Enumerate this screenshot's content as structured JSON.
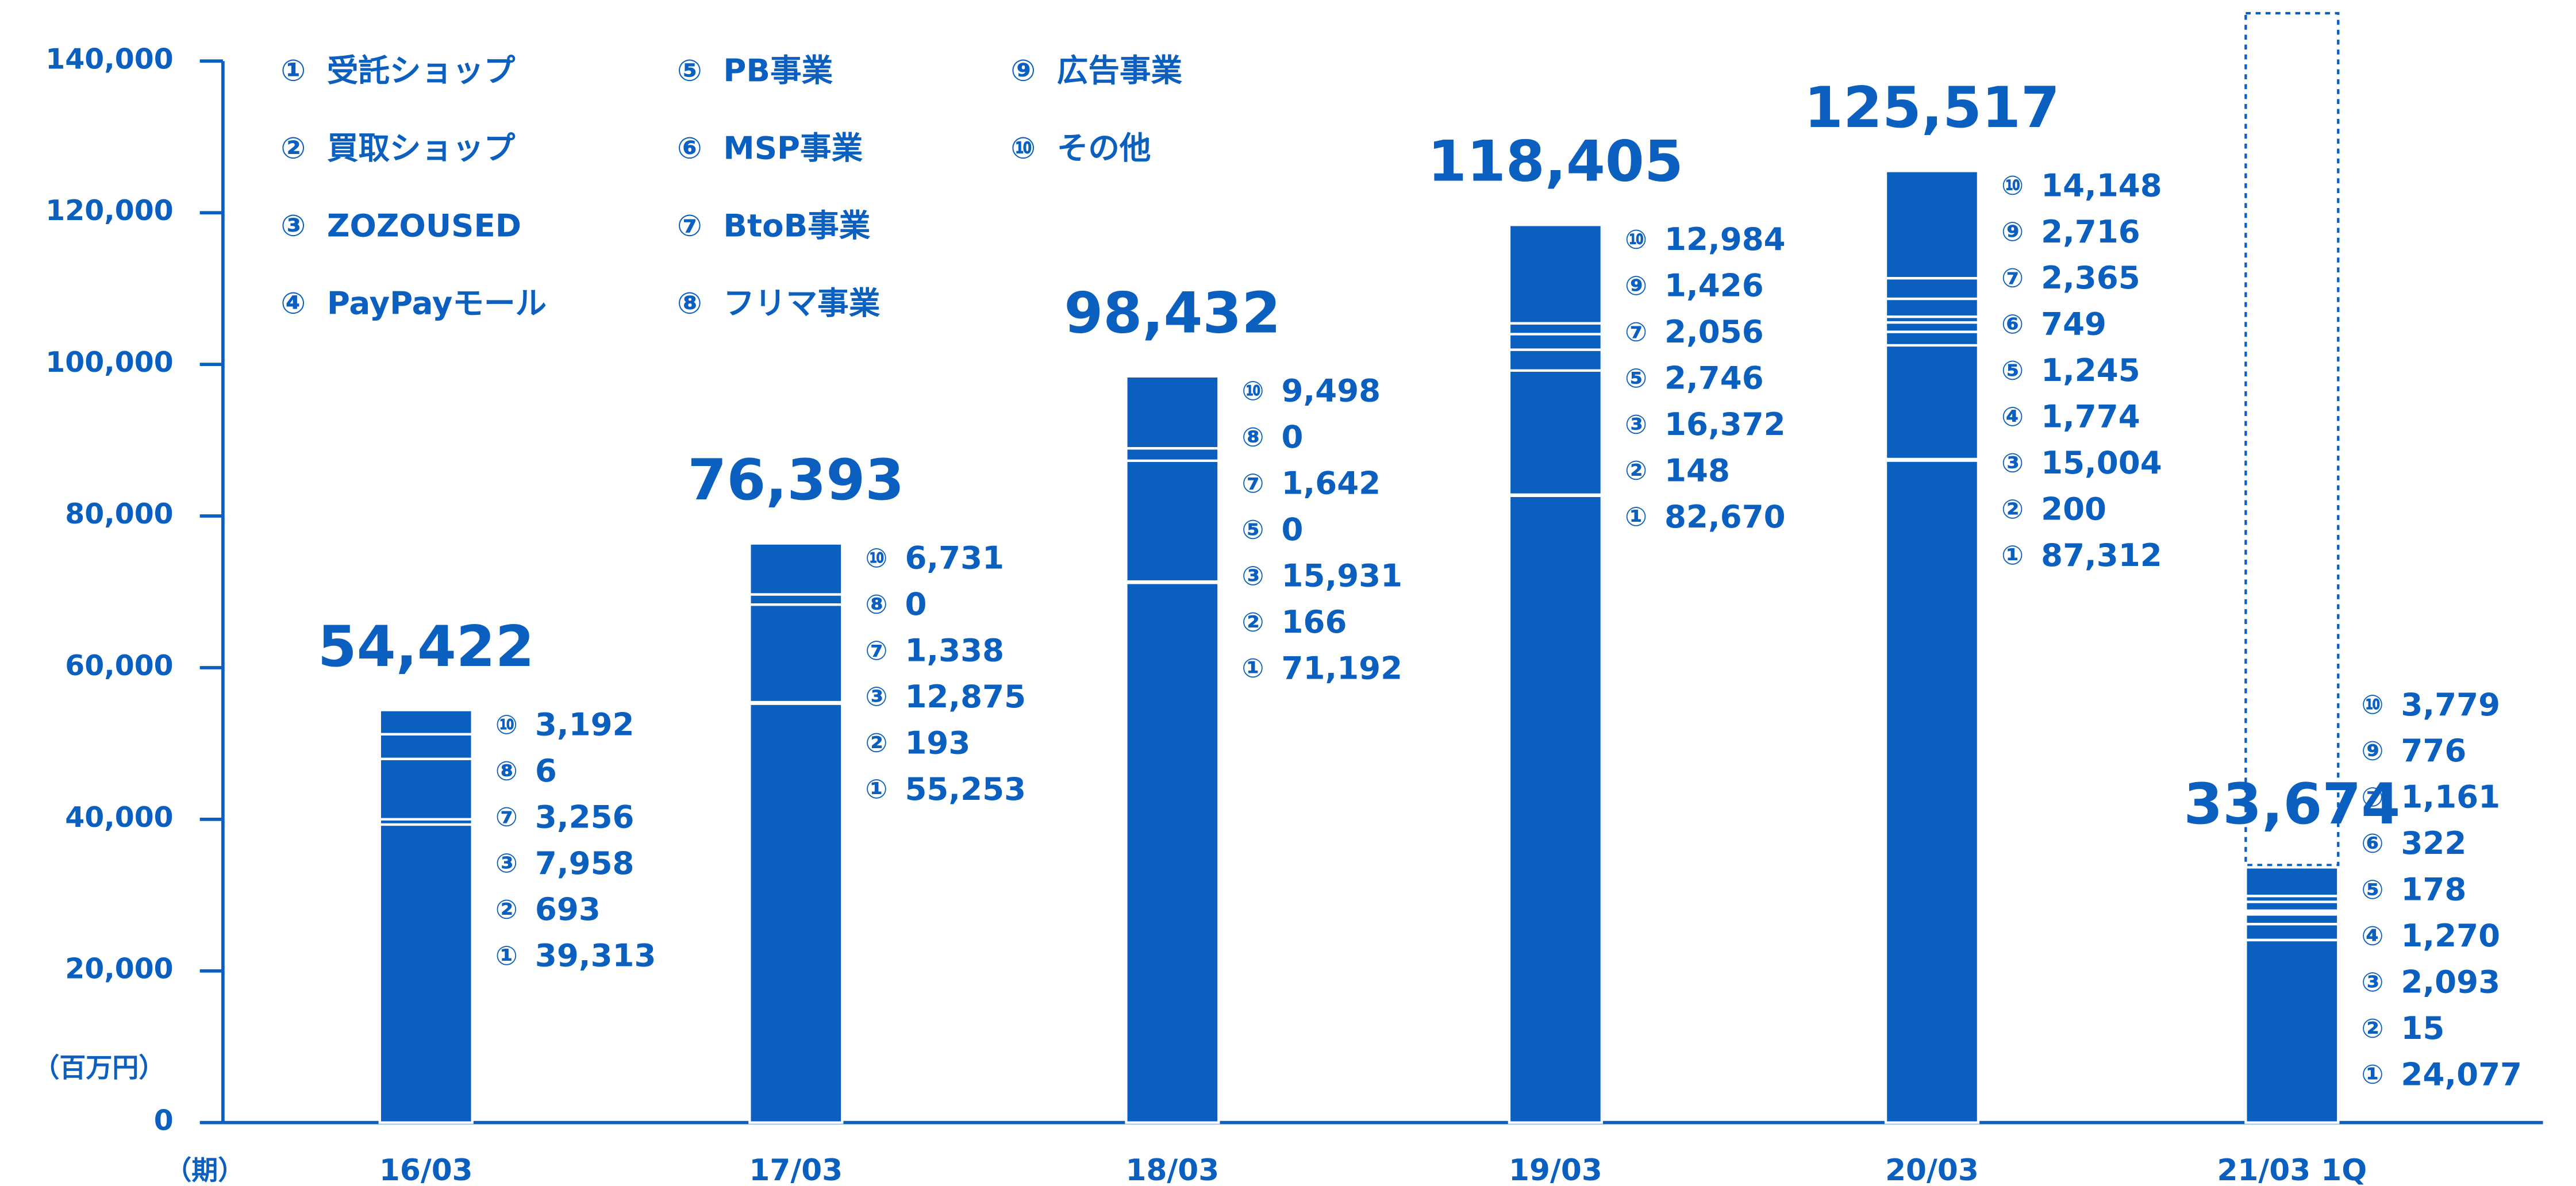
{
  "chart_data": {
    "type": "stacked-bar",
    "categories": [
      "16/03",
      "17/03",
      "18/03",
      "19/03",
      "20/03",
      "21/03 1Q"
    ],
    "y_label": "（百万円）",
    "x_label": "（期）",
    "ylim": [
      0,
      140000
    ],
    "yticks": [
      {
        "value": 0,
        "label": "0"
      },
      {
        "value": 20000,
        "label": "20,000"
      },
      {
        "value": 40000,
        "label": "40,000"
      },
      {
        "value": 60000,
        "label": "60,000"
      },
      {
        "value": 80000,
        "label": "80,000"
      },
      {
        "value": 100000,
        "label": "100,000"
      },
      {
        "value": 120000,
        "label": "120,000"
      },
      {
        "value": 140000,
        "label": "140,000"
      }
    ],
    "color": "#0b5fbf",
    "totals": [
      54422,
      76393,
      98432,
      118405,
      125517,
      33674
    ],
    "total_labels": [
      "54,422",
      "76,393",
      "98,432",
      "118,405",
      "125,517",
      "33,674"
    ],
    "series": [
      {
        "marker": "①",
        "name": "受託ショップ",
        "values": [
          39313,
          55253,
          71192,
          82670,
          87312,
          24077
        ],
        "value_labels": [
          "39,313",
          "55,253",
          "71,192",
          "82,670",
          "87,312",
          "24,077"
        ]
      },
      {
        "marker": "②",
        "name": "買取ショップ",
        "values": [
          693,
          193,
          166,
          148,
          200,
          15
        ],
        "value_labels": [
          "693",
          "193",
          "166",
          "148",
          "200",
          "15"
        ]
      },
      {
        "marker": "③",
        "name": "ZOZOUSED",
        "values": [
          7958,
          12875,
          15931,
          16372,
          15004,
          2093
        ],
        "value_labels": [
          "7,958",
          "12,875",
          "15,931",
          "16,372",
          "15,004",
          "2,093"
        ]
      },
      {
        "marker": "④",
        "name": "PayPayモール",
        "values": [
          null,
          null,
          null,
          null,
          1774,
          1270
        ],
        "value_labels": [
          null,
          null,
          null,
          null,
          "1,774",
          "1,270"
        ]
      },
      {
        "marker": "⑤",
        "name": "PB事業",
        "values": [
          null,
          null,
          0,
          2746,
          1245,
          178
        ],
        "value_labels": [
          null,
          null,
          "0",
          "2,746",
          "1,245",
          "178"
        ]
      },
      {
        "marker": "⑥",
        "name": "MSP事業",
        "values": [
          null,
          null,
          null,
          null,
          749,
          322
        ],
        "value_labels": [
          null,
          null,
          null,
          null,
          "749",
          "322"
        ]
      },
      {
        "marker": "⑦",
        "name": "BtoB事業",
        "values": [
          3256,
          1338,
          1642,
          2056,
          2365,
          1161
        ],
        "value_labels": [
          "3,256",
          "1,338",
          "1,642",
          "2,056",
          "2,365",
          "1,161"
        ]
      },
      {
        "marker": "⑧",
        "name": "フリマ事業",
        "values": [
          6,
          0,
          0,
          null,
          null,
          null
        ],
        "value_labels": [
          "6",
          "0",
          "0",
          null,
          null,
          null
        ]
      },
      {
        "marker": "⑨",
        "name": "広告事業",
        "values": [
          null,
          null,
          null,
          1426,
          2716,
          776
        ],
        "value_labels": [
          null,
          null,
          null,
          "1,426",
          "2,716",
          "776"
        ]
      },
      {
        "marker": "⑩",
        "name": "その他",
        "values": [
          3192,
          6731,
          9498,
          12984,
          14148,
          3779
        ],
        "value_labels": [
          "3,192",
          "6,731",
          "9,498",
          "12,984",
          "14,148",
          "3,779"
        ]
      }
    ]
  }
}
